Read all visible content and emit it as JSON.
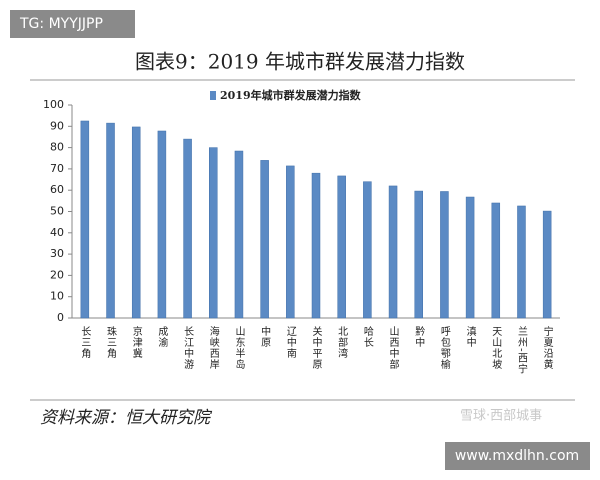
{
  "chart_data": {
    "type": "bar",
    "title": "图表9：2019 年城市群发展潜力指数",
    "legend": "2019年城市群发展潜力指数",
    "categories": [
      "长三角",
      "珠三角",
      "京津冀",
      "成渝",
      "长江中游",
      "海峡西岸",
      "山东半岛",
      "中原",
      "辽中南",
      "关中平原",
      "北部湾",
      "哈长",
      "山西中部",
      "黔中",
      "呼包鄂榆",
      "滇中",
      "天山北坡",
      "兰州-西宁",
      "宁夏沿黄"
    ],
    "values": [
      92.5,
      91.5,
      89.7,
      87.8,
      84,
      80,
      78.4,
      74,
      71.4,
      68,
      66.7,
      64,
      62,
      59.6,
      59.4,
      56.8,
      54,
      52.6,
      50.2
    ],
    "color": "#5b8ac4",
    "ylim": [
      0,
      100
    ],
    "yticks": [
      0,
      10,
      20,
      30,
      40,
      50,
      60,
      70,
      80,
      90,
      100
    ],
    "grid": false
  },
  "source": "资料来源：恒大研究院",
  "watermarks": [
    "TG: MYYJJPP",
    "雪球·西部城事",
    "www.mxdlhn.com"
  ]
}
